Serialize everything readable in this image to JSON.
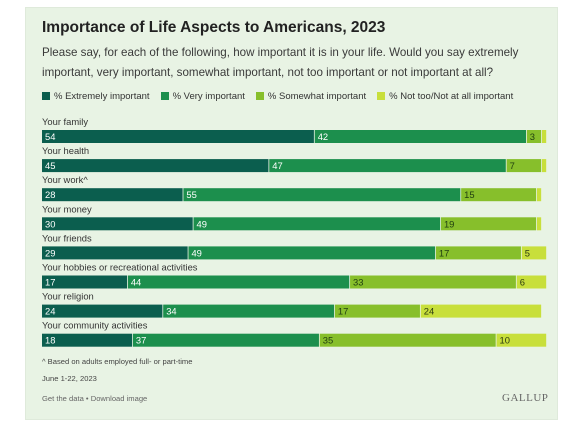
{
  "title": "Importance of Life Aspects to Americans, 2023",
  "question": "Please say, for each of the following, how important it is in your life. Would you say extremely important, very important, somewhat important, not too important or not important at all?",
  "footnote": "^ Based on adults employed full- or part-time",
  "date": "June 1-22, 2023",
  "links": {
    "get_data": "Get the data",
    "separator": "•",
    "download": "Download image"
  },
  "brand": "GALLUP",
  "chart_data": {
    "type": "bar",
    "orientation": "horizontal",
    "stacked": true,
    "xlim": [
      0,
      100
    ],
    "categories": [
      "Your family",
      "Your health",
      "Your work^",
      "Your money",
      "Your friends",
      "Your hobbies or recreational activities",
      "Your religion",
      "Your community activities"
    ],
    "series": [
      {
        "name": "% Extremely important",
        "color": "#0b5e4e",
        "label_color": "#ffffff",
        "values": [
          54,
          45,
          28,
          30,
          29,
          17,
          24,
          18
        ]
      },
      {
        "name": "% Very important",
        "color": "#1c8f4d",
        "label_color": "#ffffff",
        "values": [
          42,
          47,
          55,
          49,
          49,
          44,
          34,
          37
        ]
      },
      {
        "name": "% Somewhat important",
        "color": "#87bf2b",
        "label_color": "#1f3d10",
        "values": [
          3,
          7,
          15,
          19,
          17,
          33,
          17,
          35
        ]
      },
      {
        "name": "% Not too/Not at all important",
        "color": "#c8df3b",
        "label_color": "#2b3a10",
        "values": [
          1,
          1,
          1,
          1,
          5,
          6,
          24,
          10
        ]
      }
    ],
    "data_labels": [
      [
        "54",
        "45",
        "28",
        "30",
        "29",
        "17",
        "24",
        "18"
      ],
      [
        "42",
        "47",
        "55",
        "49",
        "49",
        "44",
        "34",
        "37"
      ],
      [
        "3",
        "7",
        "15",
        "19",
        "17",
        "33",
        "17",
        "35"
      ],
      [
        "",
        "",
        "",
        "",
        "5",
        "6",
        "24",
        "10"
      ]
    ],
    "legend_position": "top-left",
    "grid": false
  }
}
